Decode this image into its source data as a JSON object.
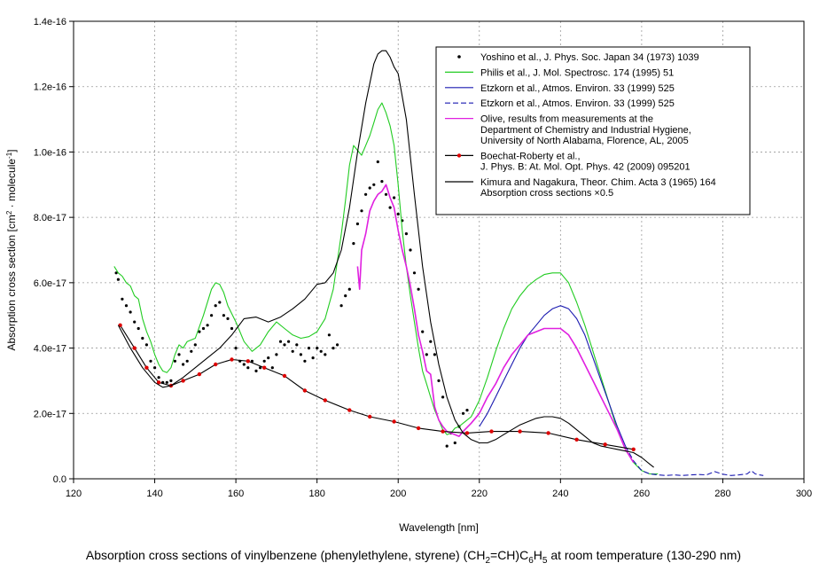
{
  "chart_data": {
    "type": "line",
    "title": "",
    "xlabel": "Wavelength [nm]",
    "ylabel": "Absorption cross section [cm² · molecule⁻¹]",
    "ylabel_parts": {
      "pre": "Absorption cross section [cm",
      "sup1": "2",
      "mid": " · molecule",
      "sup2": "-1",
      "post": "]"
    },
    "xlim": [
      120,
      300
    ],
    "ylim": [
      0,
      1.4e-16
    ],
    "grid": true,
    "legend_position": "top-right",
    "x_ticks": [
      120,
      140,
      160,
      180,
      200,
      220,
      240,
      260,
      280,
      300
    ],
    "x_tick_labels": [
      "120",
      "140",
      "160",
      "180",
      "200",
      "220",
      "240",
      "260",
      "280",
      "300"
    ],
    "y_ticks": [
      0,
      2e-17,
      4e-17,
      6e-17,
      8e-17,
      1e-16,
      1.2e-16,
      1.4e-16
    ],
    "y_tick_labels": [
      "0.0",
      "2.0e-17",
      "4.0e-17",
      "6.0e-17",
      "8.0e-17",
      "1.0e-16",
      "1.2e-16",
      "1.4e-16"
    ],
    "y_scale_exponent": -17,
    "series": [
      {
        "name": "Yoshino et al.,  J. Phys. Soc. Japan 34 (1973) 1039",
        "legend_lines": [
          "Yoshino et al.,  J. Phys. Soc. Japan 34 (1973) 1039"
        ],
        "style": "dots",
        "color": "#000000",
        "x": [
          130.5,
          131,
          132,
          133,
          134,
          135,
          136,
          137,
          138,
          139,
          140,
          141,
          142,
          143,
          144,
          145,
          146,
          147,
          148,
          149,
          150,
          151,
          152,
          153,
          154,
          155,
          156,
          157,
          158,
          159,
          160,
          161,
          162,
          163,
          164,
          165,
          166,
          167,
          168,
          169,
          170,
          171,
          172,
          173,
          174,
          175,
          176,
          177,
          178,
          179,
          180,
          181,
          182,
          183,
          184,
          185,
          186,
          187,
          188,
          189,
          190,
          191,
          192,
          193,
          194,
          195,
          196,
          197,
          198,
          199,
          200,
          201,
          202,
          203,
          204,
          205,
          206,
          207,
          208,
          209,
          210,
          211,
          212,
          213,
          214,
          215,
          216,
          217
        ],
        "y": [
          6.3,
          6.1,
          5.5,
          5.3,
          5.1,
          4.8,
          4.6,
          4.3,
          4.1,
          3.6,
          3.4,
          3.1,
          2.95,
          2.95,
          3.0,
          3.6,
          3.8,
          3.5,
          3.6,
          3.9,
          4.1,
          4.5,
          4.6,
          4.7,
          5.0,
          5.3,
          5.4,
          5.0,
          4.9,
          4.6,
          4.0,
          3.6,
          3.5,
          3.4,
          3.6,
          3.3,
          3.4,
          3.6,
          3.7,
          3.4,
          3.8,
          4.2,
          4.1,
          4.2,
          3.9,
          4.1,
          3.8,
          3.6,
          4.0,
          3.7,
          4.0,
          3.9,
          3.8,
          4.4,
          4.0,
          4.1,
          5.3,
          5.6,
          5.8,
          7.2,
          7.8,
          8.2,
          8.7,
          8.9,
          9.0,
          9.7,
          9.1,
          8.7,
          8.3,
          8.6,
          8.1,
          7.9,
          7.5,
          7.0,
          6.3,
          5.8,
          4.5,
          3.8,
          4.2,
          3.8,
          3.0,
          2.5,
          1.0,
          1.4,
          1.1,
          1.6,
          2.0,
          2.1
        ]
      },
      {
        "name": "Philis et al.,  J. Mol. Spectrosc. 174 (1995) 51",
        "legend_lines": [
          "Philis et al.,  J. Mol. Spectrosc. 174 (1995) 51"
        ],
        "style": "line",
        "color": "#22cc22",
        "x": [
          130,
          131,
          132,
          133,
          134,
          135,
          136,
          137,
          138,
          139,
          140,
          141,
          142,
          143,
          144,
          145,
          146,
          147,
          148,
          150,
          152,
          154,
          155,
          156,
          157,
          158,
          160,
          162,
          164,
          166,
          168,
          170,
          172,
          174,
          176,
          178,
          180,
          182,
          184,
          186,
          187,
          188,
          189,
          190,
          191,
          192,
          193,
          194,
          195,
          196,
          197,
          198,
          199,
          200,
          201,
          202,
          203,
          204,
          205,
          206,
          207,
          208,
          209,
          210,
          211,
          212,
          213,
          214,
          215,
          216,
          217,
          218,
          220,
          222,
          224,
          226,
          228,
          230,
          232,
          234,
          236,
          238,
          240,
          242,
          244,
          246,
          248,
          250,
          252,
          254,
          256,
          258,
          260,
          262,
          264
        ],
        "y": [
          6.5,
          6.3,
          6.2,
          6.0,
          5.9,
          5.6,
          5.5,
          4.9,
          4.5,
          4.2,
          3.8,
          3.5,
          3.3,
          3.25,
          3.4,
          3.8,
          4.1,
          4.0,
          4.2,
          4.3,
          5.0,
          5.8,
          6.0,
          5.95,
          5.7,
          5.3,
          4.8,
          4.2,
          3.9,
          4.1,
          4.5,
          4.8,
          4.6,
          4.4,
          4.3,
          4.35,
          4.5,
          4.9,
          5.8,
          7.5,
          8.5,
          9.6,
          10.2,
          10.05,
          9.9,
          10.2,
          10.5,
          10.9,
          11.3,
          11.5,
          11.2,
          10.8,
          10.2,
          9.0,
          7.6,
          6.5,
          5.6,
          4.8,
          4.0,
          3.3,
          2.9,
          2.5,
          2.1,
          1.8,
          1.5,
          1.35,
          1.4,
          1.55,
          1.6,
          1.7,
          1.8,
          1.9,
          2.4,
          3.1,
          3.9,
          4.6,
          5.2,
          5.6,
          5.9,
          6.1,
          6.25,
          6.3,
          6.3,
          6.0,
          5.4,
          4.7,
          3.9,
          3.1,
          2.3,
          1.5,
          0.9,
          0.5,
          0.25,
          0.15,
          0.15
        ]
      },
      {
        "name": "Etzkorn et al.,  Atmos. Environ. 33 (1999) 525",
        "legend_lines": [
          "Etzkorn et al.,  Atmos. Environ. 33 (1999) 525"
        ],
        "style": "line",
        "color": "#1a1ab0",
        "x": [
          220,
          222,
          224,
          226,
          228,
          230,
          232,
          234,
          236,
          238,
          240,
          242,
          244,
          246,
          248,
          250,
          252,
          254,
          256
        ],
        "y": [
          1.6,
          2.0,
          2.5,
          3.0,
          3.5,
          4.0,
          4.4,
          4.7,
          5.0,
          5.2,
          5.3,
          5.2,
          4.9,
          4.4,
          3.7,
          3.0,
          2.3,
          1.6,
          1.0
        ]
      },
      {
        "name": "Etzkorn et al.,  Atmos. Environ. 33 (1999) 525",
        "legend_lines": [
          "Etzkorn et al.,  Atmos. Environ. 33 (1999) 525"
        ],
        "style": "dashed",
        "color": "#1a1ab0",
        "x": [
          256,
          258,
          260,
          262,
          264,
          266,
          268,
          270,
          272,
          274,
          276,
          278,
          280,
          282,
          284,
          286,
          287,
          288,
          289,
          290
        ],
        "y": [
          1.0,
          0.55,
          0.25,
          0.15,
          0.12,
          0.1,
          0.12,
          0.1,
          0.12,
          0.13,
          0.12,
          0.22,
          0.14,
          0.1,
          0.12,
          0.15,
          0.25,
          0.15,
          0.12,
          0.1
        ]
      },
      {
        "name": "Olive, results from measurements at the Department of Chemistry and Industrial Hygiene, University of North Alabama, Florence, AL, 2005",
        "legend_lines": [
          "Olive, results from measurements at the",
          "Department of Chemistry and Industrial Hygiene,",
          "University of North Alabama, Florence, AL, 2005"
        ],
        "style": "line",
        "color": "#e020e0",
        "x": [
          190,
          190.5,
          191,
          192,
          193,
          194,
          195,
          196,
          197,
          198,
          199,
          200,
          201,
          202,
          203,
          204,
          205,
          206,
          207,
          208,
          209,
          210,
          211,
          212,
          213,
          214,
          215,
          216,
          218,
          220,
          222,
          224,
          226,
          228,
          230,
          232,
          234,
          236,
          238,
          240,
          242,
          244,
          246,
          248,
          250,
          252,
          254,
          256,
          258
        ],
        "y": [
          6.5,
          5.8,
          7.0,
          7.5,
          8.2,
          8.5,
          8.7,
          8.8,
          9.0,
          8.6,
          8.3,
          7.6,
          7.0,
          6.5,
          5.9,
          5.2,
          4.4,
          3.9,
          3.3,
          3.2,
          2.2,
          1.8,
          1.6,
          1.45,
          1.4,
          1.35,
          1.3,
          1.45,
          1.7,
          2.0,
          2.5,
          2.9,
          3.4,
          3.8,
          4.1,
          4.4,
          4.5,
          4.6,
          4.6,
          4.6,
          4.4,
          4.0,
          3.5,
          3.0,
          2.5,
          2.0,
          1.5,
          0.9,
          0.5
        ]
      },
      {
        "name": "Boechat-Roberty et al., J. Phys. B: At. Mol. Opt. Phys. 42 (2009) 095201",
        "legend_lines": [
          "Boechat-Roberty et al.,",
          "J. Phys. B: At. Mol. Opt. Phys. 42 (2009) 095201"
        ],
        "style": "line-markers",
        "color": "#000000",
        "marker_color": "#dd0000",
        "x": [
          131.5,
          135,
          138,
          141,
          144,
          147,
          151,
          155,
          159,
          163,
          167,
          172,
          177,
          182,
          188,
          193,
          199,
          205,
          211,
          217,
          223,
          230,
          237,
          244,
          251,
          258
        ],
        "y": [
          4.7,
          4.0,
          3.4,
          2.95,
          2.85,
          3.0,
          3.2,
          3.5,
          3.65,
          3.6,
          3.4,
          3.15,
          2.7,
          2.4,
          2.1,
          1.9,
          1.75,
          1.55,
          1.45,
          1.4,
          1.45,
          1.45,
          1.4,
          1.2,
          1.05,
          0.9
        ]
      },
      {
        "name": "Kimura and Nagakura, Theor. Chim. Acta 3 (1965) 164 Absorption cross sections ×0.5",
        "legend_lines": [
          "Kimura and Nagakura, Theor. Chim. Acta 3 (1965) 164",
          "Absorption cross sections ×0.5"
        ],
        "style": "line",
        "color": "#000000",
        "x": [
          131,
          134,
          137,
          140,
          142,
          144,
          147,
          150,
          153,
          156,
          159,
          162,
          165,
          168,
          171,
          174,
          177,
          180,
          182,
          184,
          186,
          188,
          190,
          192,
          194,
          195,
          196,
          197,
          198,
          199,
          200,
          202,
          204,
          206,
          208,
          210,
          212,
          214,
          216,
          218,
          220,
          222,
          224,
          226,
          228,
          230,
          232,
          234,
          236,
          238,
          240,
          242,
          244,
          246,
          248,
          250,
          252,
          254,
          256,
          258,
          260,
          262,
          263
        ],
        "y": [
          4.7,
          4.0,
          3.4,
          2.95,
          2.8,
          2.85,
          3.1,
          3.4,
          3.7,
          4.0,
          4.4,
          4.9,
          4.95,
          4.8,
          4.95,
          5.2,
          5.5,
          5.95,
          6.0,
          6.3,
          7.0,
          8.3,
          10.0,
          11.5,
          12.7,
          13.0,
          13.1,
          13.1,
          12.9,
          12.6,
          12.4,
          11.0,
          8.7,
          6.5,
          4.8,
          3.5,
          2.5,
          1.8,
          1.4,
          1.2,
          1.1,
          1.1,
          1.2,
          1.35,
          1.5,
          1.65,
          1.75,
          1.85,
          1.9,
          1.9,
          1.85,
          1.7,
          1.5,
          1.3,
          1.1,
          1.0,
          0.95,
          0.9,
          0.85,
          0.8,
          0.65,
          0.45,
          0.35
        ]
      }
    ]
  },
  "caption": {
    "before": "Absorption cross sections of vinylbenzene (phenylethylene, styrene) (CH",
    "sub1": "2",
    "mid1": "=CH)C",
    "sub2": "6",
    "mid2": "H",
    "sub3": "5",
    "after": " at room temperature (130-290 nm)"
  }
}
